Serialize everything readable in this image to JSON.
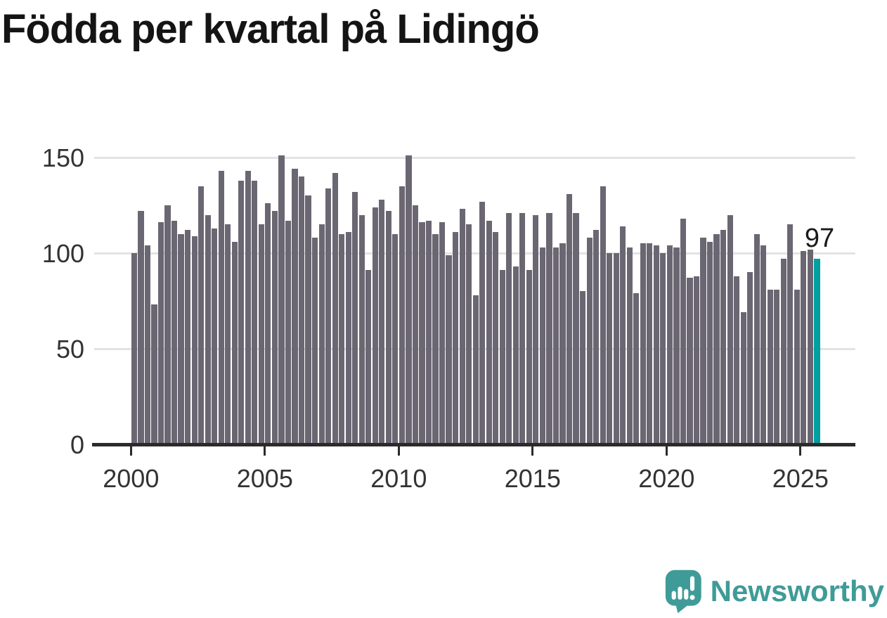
{
  "title": "Födda per kvartal på Lidingö",
  "chart_data": {
    "type": "bar",
    "title": "Födda per kvartal på Lidingö",
    "x_unit": "quarter",
    "start_quarter": "2000Q1",
    "end_quarter": "2025Q3",
    "values": [
      100,
      122,
      104,
      73,
      116,
      125,
      117,
      110,
      112,
      109,
      135,
      120,
      113,
      143,
      115,
      106,
      138,
      143,
      138,
      115,
      126,
      122,
      151,
      117,
      144,
      140,
      130,
      108,
      115,
      134,
      142,
      110,
      111,
      132,
      120,
      91,
      124,
      128,
      122,
      110,
      135,
      151,
      125,
      116,
      117,
      110,
      116,
      99,
      111,
      123,
      115,
      78,
      127,
      117,
      111,
      91,
      121,
      93,
      121,
      91,
      120,
      103,
      121,
      103,
      105,
      131,
      121,
      80,
      108,
      112,
      135,
      100,
      100,
      114,
      103,
      79,
      105,
      105,
      104,
      100,
      104,
      103,
      118,
      87,
      88,
      108,
      106,
      110,
      112,
      120,
      88,
      69,
      90,
      110,
      104,
      81,
      81,
      97,
      115,
      81,
      101,
      102,
      97
    ],
    "highlight": {
      "index": 102,
      "quarter": "2025Q3",
      "value": 97,
      "label": "97"
    },
    "y_axis": {
      "ticks": [
        150,
        100,
        50,
        0
      ],
      "labels": [
        "150",
        "100",
        "50",
        "0"
      ],
      "ylim": [
        0,
        160
      ]
    },
    "x_axis": {
      "years": [
        2000,
        2005,
        2010,
        2015,
        2020,
        2025
      ],
      "labels": [
        "2000",
        "2005",
        "2010",
        "2015",
        "2020",
        "2025"
      ]
    },
    "grid": true,
    "legend": "none",
    "bar_color": "#6b6772",
    "highlight_color": "#00a0a0",
    "grid_color": "#e3e3e3",
    "axis_color": "#2b2b2b"
  },
  "annotation": {
    "value_label": "97"
  },
  "branding": {
    "name": "Newsworthy",
    "color": "#3f9b98"
  }
}
